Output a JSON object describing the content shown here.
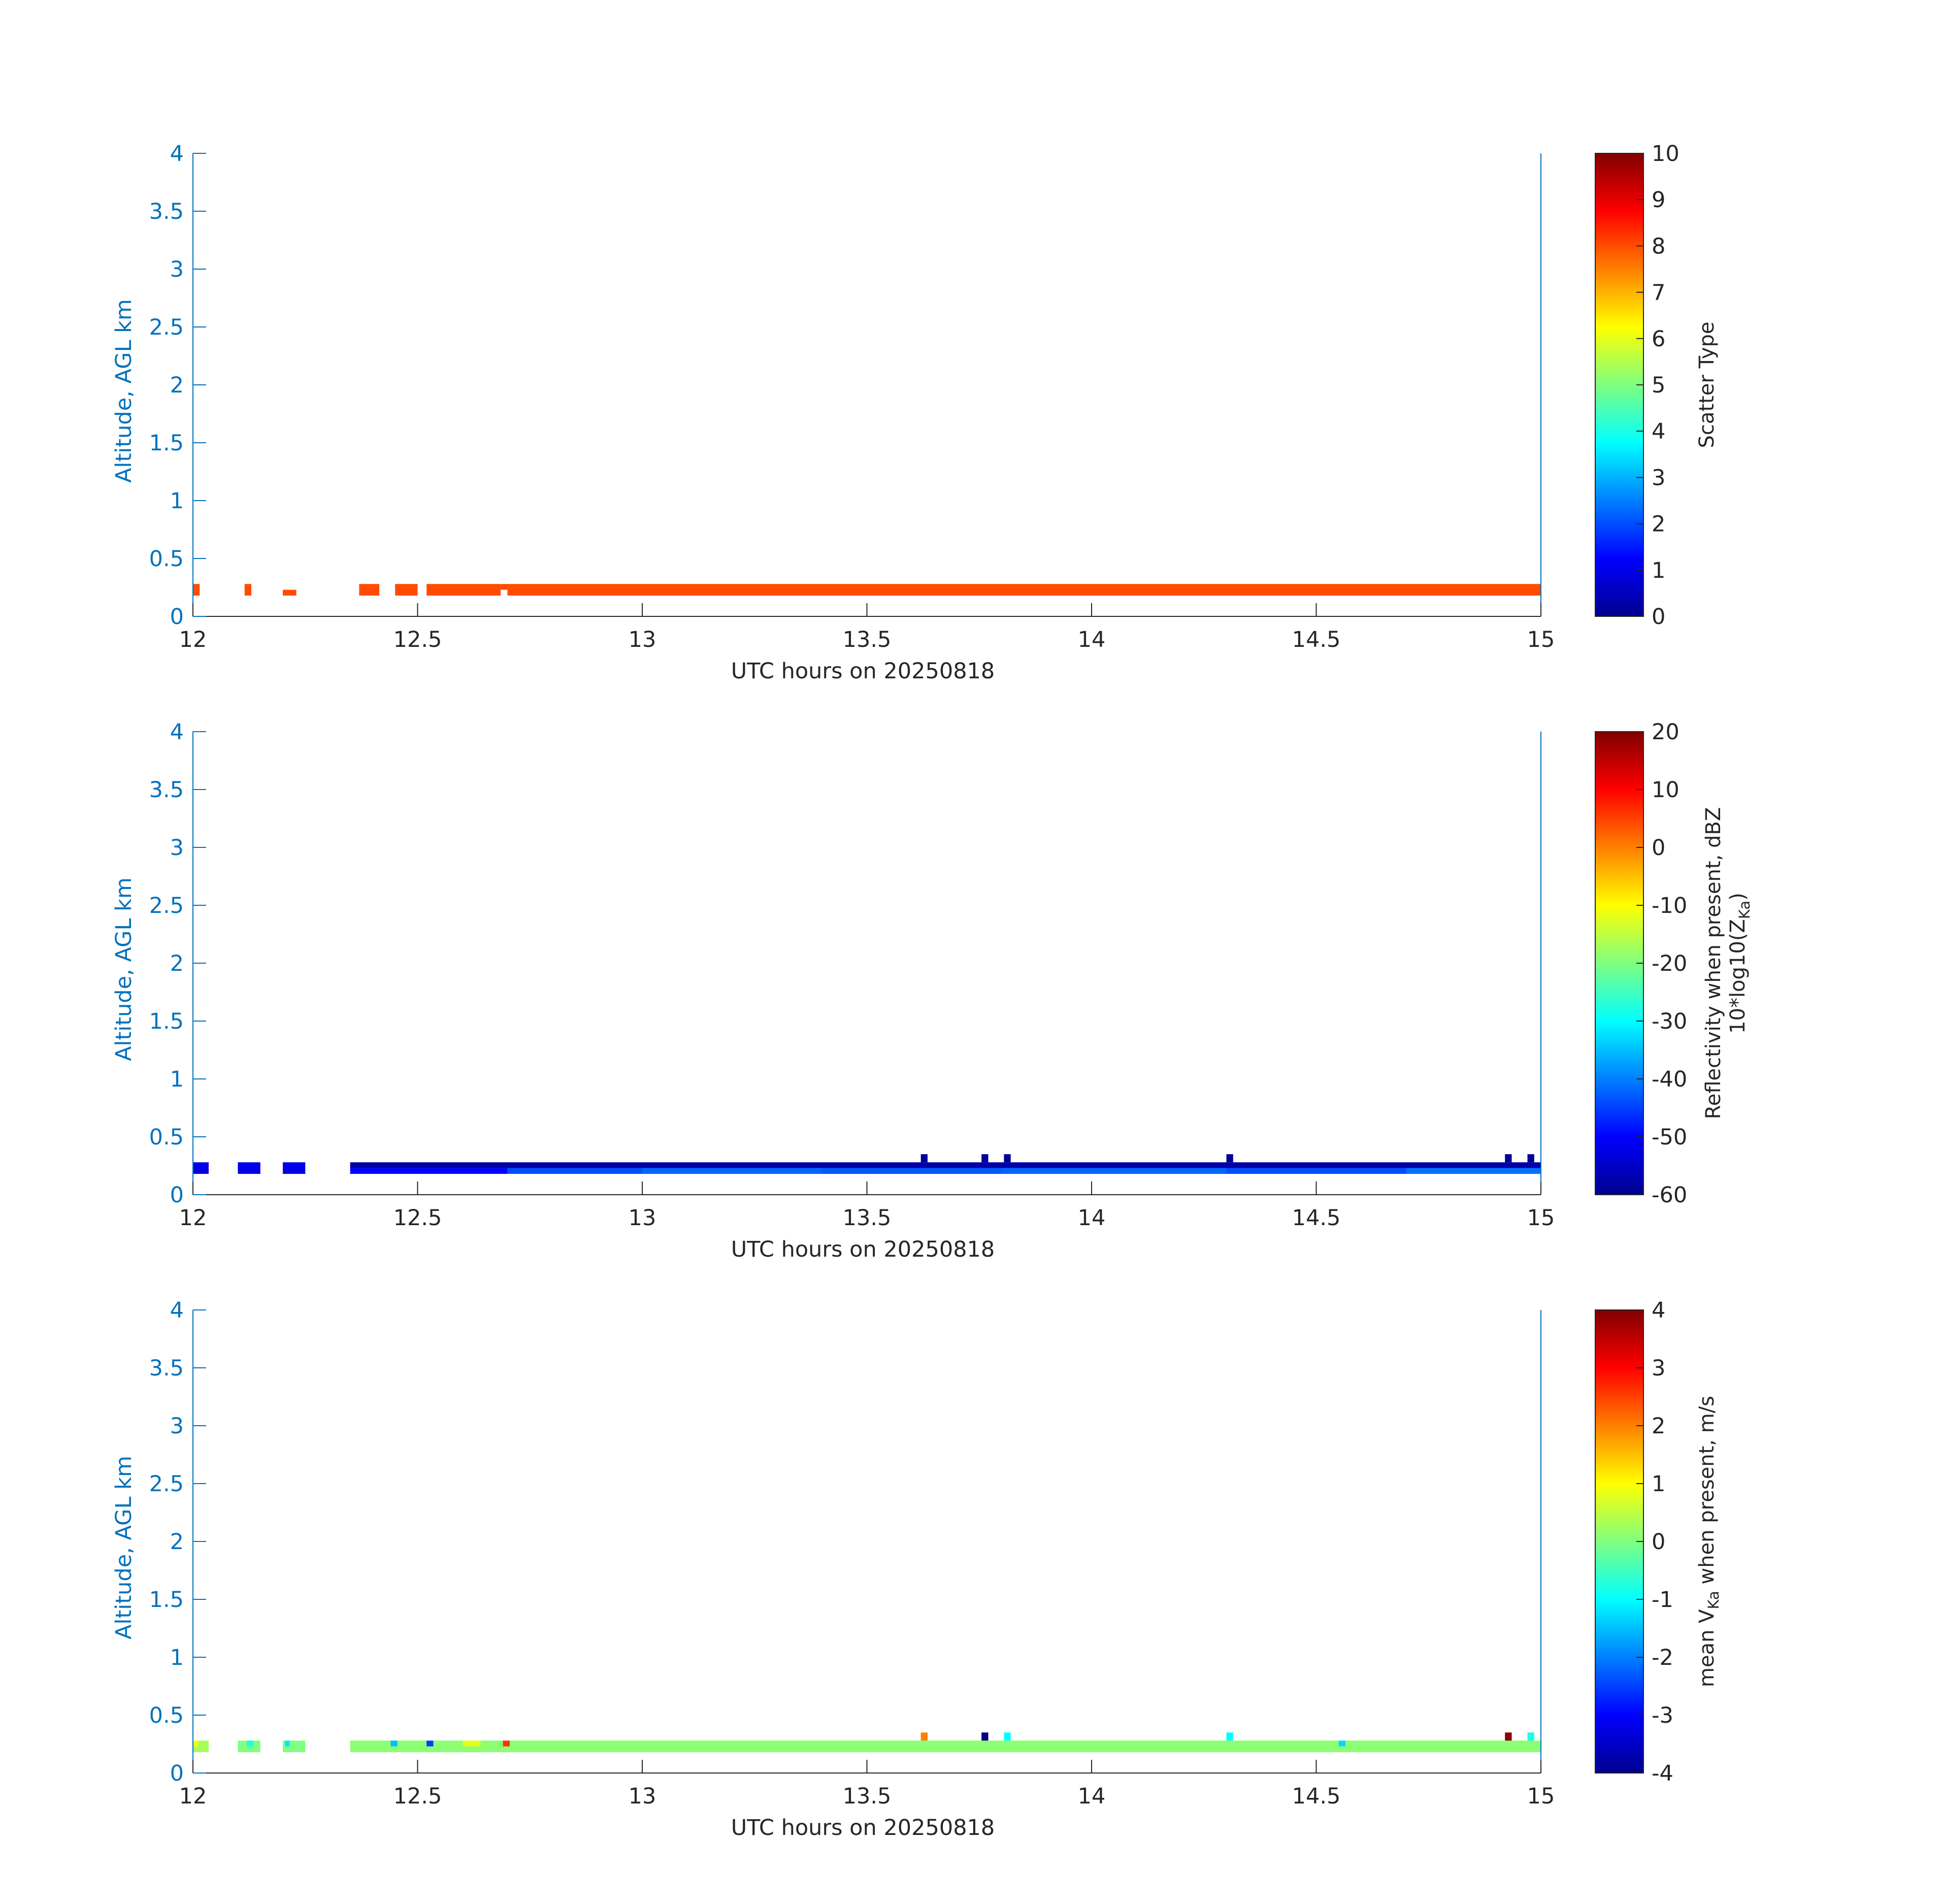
{
  "figure": {
    "axis_color": "#0072bd",
    "text_color": "#262626",
    "background": "#ffffff",
    "colormap": "jet"
  },
  "chart_data": [
    {
      "type": "heatmap",
      "title": "",
      "xlabel": "UTC hours on 20250818",
      "ylabel": "Altitude, AGL km",
      "xlim": [
        12,
        15
      ],
      "ylim": [
        0,
        4
      ],
      "x_ticks": [
        "12",
        "12.5",
        "13",
        "13.5",
        "14",
        "14.5",
        "15"
      ],
      "y_ticks": [
        "0",
        "0.5",
        "1",
        "1.5",
        "2",
        "2.5",
        "3",
        "3.5",
        "4"
      ],
      "grid": false,
      "colorbar": {
        "label": "Scatter Type",
        "label_sub": "",
        "label_tail": "",
        "label_line2_pre": "",
        "label_line2_sub": "",
        "label_line2_post": "",
        "clim": [
          0,
          10
        ],
        "ticks": [
          "0",
          "1",
          "2",
          "3",
          "4",
          "5",
          "6",
          "7",
          "8",
          "9",
          "10"
        ]
      },
      "cells": [
        {
          "x0": 12.0,
          "x1": 12.015,
          "y0": 0.18,
          "y1": 0.28,
          "v": 8.0
        },
        {
          "x0": 12.115,
          "x1": 12.13,
          "y0": 0.18,
          "y1": 0.28,
          "v": 8.0
        },
        {
          "x0": 12.2,
          "x1": 12.23,
          "y0": 0.18,
          "y1": 0.23,
          "v": 8.0
        },
        {
          "x0": 12.37,
          "x1": 12.415,
          "y0": 0.18,
          "y1": 0.28,
          "v": 8.0
        },
        {
          "x0": 12.45,
          "x1": 12.5,
          "y0": 0.18,
          "y1": 0.28,
          "v": 8.0
        },
        {
          "x0": 12.52,
          "x1": 12.685,
          "y0": 0.18,
          "y1": 0.28,
          "v": 8.0
        },
        {
          "x0": 12.685,
          "x1": 12.7,
          "y0": 0.23,
          "y1": 0.28,
          "v": 8.0
        },
        {
          "x0": 12.7,
          "x1": 15.0,
          "y0": 0.18,
          "y1": 0.28,
          "v": 8.0
        }
      ]
    },
    {
      "type": "heatmap",
      "title": "",
      "xlabel": "UTC hours on 20250818",
      "ylabel": "Altitude, AGL km",
      "xlim": [
        12,
        15
      ],
      "ylim": [
        0,
        4
      ],
      "x_ticks": [
        "12",
        "12.5",
        "13",
        "13.5",
        "14",
        "14.5",
        "15"
      ],
      "y_ticks": [
        "0",
        "0.5",
        "1",
        "1.5",
        "2",
        "2.5",
        "3",
        "3.5",
        "4"
      ],
      "grid": false,
      "colorbar": {
        "label": "Reflectivity when present, dBZ",
        "label_sub": "",
        "label_tail": "",
        "label_line2_pre": "10*log10(Z",
        "label_line2_sub": "Ka",
        "label_line2_post": ")",
        "clim": [
          -60,
          20
        ],
        "ticks": [
          "-60",
          "-50",
          "-40",
          "-30",
          "-20",
          "-10",
          "0",
          "10",
          "20"
        ]
      },
      "cells": [
        {
          "x0": 12.0,
          "x1": 12.035,
          "y0": 0.18,
          "y1": 0.28,
          "v": -52
        },
        {
          "x0": 12.1,
          "x1": 12.15,
          "y0": 0.18,
          "y1": 0.28,
          "v": -52
        },
        {
          "x0": 12.2,
          "x1": 12.25,
          "y0": 0.18,
          "y1": 0.28,
          "v": -52
        },
        {
          "x0": 12.35,
          "x1": 15.0,
          "y0": 0.23,
          "y1": 0.28,
          "v": -57
        },
        {
          "x0": 12.35,
          "x1": 12.7,
          "y0": 0.18,
          "y1": 0.23,
          "v": -50
        },
        {
          "x0": 12.7,
          "x1": 13.0,
          "y0": 0.18,
          "y1": 0.23,
          "v": -44
        },
        {
          "x0": 13.0,
          "x1": 13.4,
          "y0": 0.18,
          "y1": 0.23,
          "v": -42
        },
        {
          "x0": 13.4,
          "x1": 13.8,
          "y0": 0.18,
          "y1": 0.23,
          "v": -43
        },
        {
          "x0": 13.8,
          "x1": 14.3,
          "y0": 0.18,
          "y1": 0.23,
          "v": -42
        },
        {
          "x0": 14.3,
          "x1": 14.7,
          "y0": 0.18,
          "y1": 0.23,
          "v": -44
        },
        {
          "x0": 14.7,
          "x1": 15.0,
          "y0": 0.18,
          "y1": 0.23,
          "v": -41
        },
        {
          "x0": 13.62,
          "x1": 13.635,
          "y0": 0.28,
          "y1": 0.35,
          "v": -58
        },
        {
          "x0": 13.755,
          "x1": 13.77,
          "y0": 0.28,
          "y1": 0.35,
          "v": -58
        },
        {
          "x0": 13.805,
          "x1": 13.82,
          "y0": 0.28,
          "y1": 0.35,
          "v": -58
        },
        {
          "x0": 14.3,
          "x1": 14.315,
          "y0": 0.28,
          "y1": 0.35,
          "v": -58
        },
        {
          "x0": 14.92,
          "x1": 14.935,
          "y0": 0.28,
          "y1": 0.35,
          "v": -58
        },
        {
          "x0": 14.97,
          "x1": 14.985,
          "y0": 0.28,
          "y1": 0.35,
          "v": -58
        }
      ]
    },
    {
      "type": "heatmap",
      "title": "",
      "xlabel": "UTC hours on 20250818",
      "ylabel": "Altitude, AGL km",
      "xlim": [
        12,
        15
      ],
      "ylim": [
        0,
        4
      ],
      "x_ticks": [
        "12",
        "12.5",
        "13",
        "13.5",
        "14",
        "14.5",
        "15"
      ],
      "y_ticks": [
        "0",
        "0.5",
        "1",
        "1.5",
        "2",
        "2.5",
        "3",
        "3.5",
        "4"
      ],
      "grid": false,
      "colorbar": {
        "label": "mean V",
        "label_sub": "Ka",
        "label_tail": " when present, m/s",
        "label_line2_pre": "",
        "label_line2_sub": "",
        "label_line2_post": "",
        "clim": [
          -4,
          4
        ],
        "ticks": [
          "-4",
          "-3",
          "-2",
          "-1",
          "0",
          "1",
          "2",
          "3",
          "4"
        ]
      },
      "cells": [
        {
          "x0": 12.0,
          "x1": 12.035,
          "y0": 0.18,
          "y1": 0.28,
          "v": 0.3
        },
        {
          "x0": 12.0,
          "x1": 12.012,
          "y0": 0.23,
          "y1": 0.28,
          "v": 1.0
        },
        {
          "x0": 12.1,
          "x1": 12.15,
          "y0": 0.18,
          "y1": 0.28,
          "v": 0.0
        },
        {
          "x0": 12.12,
          "x1": 12.135,
          "y0": 0.23,
          "y1": 0.28,
          "v": -0.8
        },
        {
          "x0": 12.2,
          "x1": 12.25,
          "y0": 0.18,
          "y1": 0.28,
          "v": 0.0
        },
        {
          "x0": 12.205,
          "x1": 12.215,
          "y0": 0.23,
          "y1": 0.28,
          "v": -1.2
        },
        {
          "x0": 12.35,
          "x1": 15.0,
          "y0": 0.18,
          "y1": 0.28,
          "v": 0.1
        },
        {
          "x0": 12.44,
          "x1": 12.455,
          "y0": 0.23,
          "y1": 0.28,
          "v": -1.5
        },
        {
          "x0": 12.52,
          "x1": 12.535,
          "y0": 0.23,
          "y1": 0.28,
          "v": -2.5
        },
        {
          "x0": 12.6,
          "x1": 12.64,
          "y0": 0.23,
          "y1": 0.28,
          "v": 0.8
        },
        {
          "x0": 12.69,
          "x1": 12.705,
          "y0": 0.23,
          "y1": 0.28,
          "v": 2.6
        },
        {
          "x0": 13.62,
          "x1": 13.635,
          "y0": 0.28,
          "y1": 0.35,
          "v": 2.0
        },
        {
          "x0": 13.755,
          "x1": 13.77,
          "y0": 0.28,
          "y1": 0.35,
          "v": -4.0
        },
        {
          "x0": 13.805,
          "x1": 13.82,
          "y0": 0.28,
          "y1": 0.35,
          "v": -1.0
        },
        {
          "x0": 14.3,
          "x1": 14.315,
          "y0": 0.28,
          "y1": 0.35,
          "v": -1.0
        },
        {
          "x0": 14.55,
          "x1": 14.565,
          "y0": 0.23,
          "y1": 0.28,
          "v": -1.3
        },
        {
          "x0": 14.92,
          "x1": 14.935,
          "y0": 0.28,
          "y1": 0.35,
          "v": 3.9
        },
        {
          "x0": 14.97,
          "x1": 14.985,
          "y0": 0.28,
          "y1": 0.35,
          "v": -0.8
        }
      ]
    }
  ]
}
